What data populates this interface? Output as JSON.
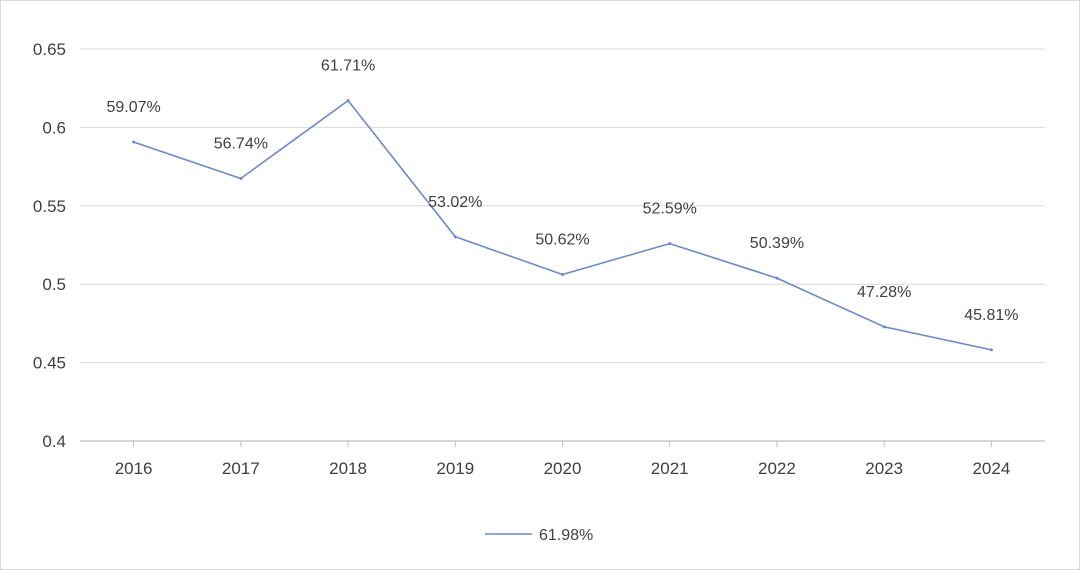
{
  "chart_data": {
    "type": "line",
    "title": "",
    "xlabel": "",
    "ylabel": "",
    "categories": [
      "2016",
      "2017",
      "2018",
      "2019",
      "2020",
      "2021",
      "2022",
      "2023",
      "2024"
    ],
    "series": [
      {
        "name": "61.98%",
        "color": "#6a8ac6",
        "values": [
          0.5907,
          0.5674,
          0.6171,
          0.5302,
          0.5062,
          0.5259,
          0.5039,
          0.4728,
          0.4581
        ],
        "labels": [
          "59.07%",
          "56.74%",
          "61.71%",
          "53.02%",
          "50.62%",
          "52.59%",
          "50.39%",
          "47.28%",
          "45.81%"
        ]
      }
    ],
    "ylim": [
      0.4,
      0.65
    ],
    "yticks": [
      0.4,
      0.45,
      0.5,
      0.55,
      0.6,
      0.65
    ],
    "ytick_labels": [
      "0.4",
      "0.45",
      "0.5",
      "0.55",
      "0.6",
      "0.65"
    ],
    "grid": true,
    "legend_position": "bottom",
    "colors": {
      "grid": "#d9d9d9",
      "axis": "#bfbfbf",
      "text": "#404040"
    }
  }
}
